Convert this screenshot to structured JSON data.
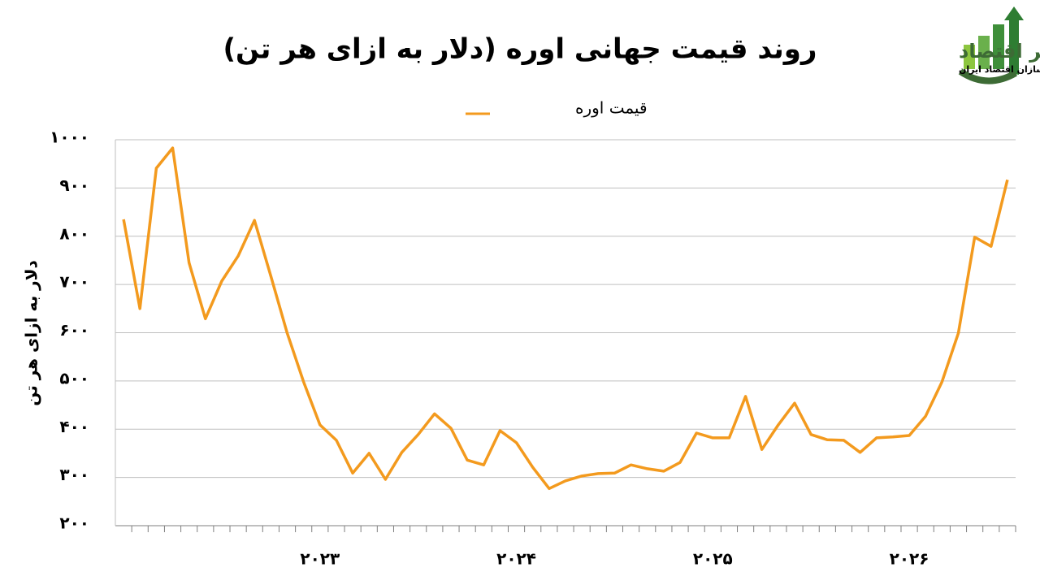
{
  "logo": {
    "name": "مسیر اقتصاد",
    "tagline": "رسانه تصمیم سازان اقتصاد ایران"
  },
  "chart_data": {
    "type": "line",
    "title": "روند قیمت جهانی اوره (دلار به ازای هر تن)",
    "y_label": "دلار به ازای هر تن",
    "categories": [
      null,
      null,
      null,
      null,
      null,
      null,
      null,
      null,
      null,
      null,
      null,
      null,
      "۲۰۲۳",
      null,
      null,
      null,
      null,
      null,
      null,
      null,
      null,
      null,
      null,
      null,
      "۲۰۲۴",
      null,
      null,
      null,
      null,
      null,
      null,
      null,
      null,
      null,
      null,
      null,
      "۲۰۲۵",
      null,
      null,
      null,
      null,
      null,
      null,
      null,
      null,
      null,
      null,
      null,
      "۲۰۲۶",
      null,
      null,
      null,
      null,
      null,
      null
    ],
    "series": [
      {
        "name": "قیمت اوره",
        "color": "#f39a1e",
        "values": [
          835,
          650,
          941,
          983,
          745,
          629,
          707,
          759,
          833,
          717,
          599,
          498,
          409,
          377,
          309,
          350,
          296,
          352,
          389,
          432,
          402,
          336,
          326,
          397,
          372,
          321,
          277,
          293,
          303,
          308,
          309,
          326,
          318,
          313,
          331,
          392,
          382,
          382,
          468,
          358,
          409,
          454,
          389,
          378,
          377,
          352,
          382,
          384,
          387,
          427,
          498,
          599,
          798,
          779,
          917
        ]
      }
    ],
    "ylim": [
      200,
      1000
    ],
    "yticks": [
      {
        "value": 200,
        "label": "۲۰۰"
      },
      {
        "value": 300,
        "label": "۳۰۰"
      },
      {
        "value": 400,
        "label": "۴۰۰"
      },
      {
        "value": 500,
        "label": "۵۰۰"
      },
      {
        "value": 600,
        "label": "۶۰۰"
      },
      {
        "value": 700,
        "label": "۷۰۰"
      },
      {
        "value": 800,
        "label": "۸۰۰"
      },
      {
        "value": 900,
        "label": "۹۰۰"
      },
      {
        "value": 1000,
        "label": "۱۰۰۰"
      }
    ],
    "grid": true,
    "legend": "top"
  }
}
